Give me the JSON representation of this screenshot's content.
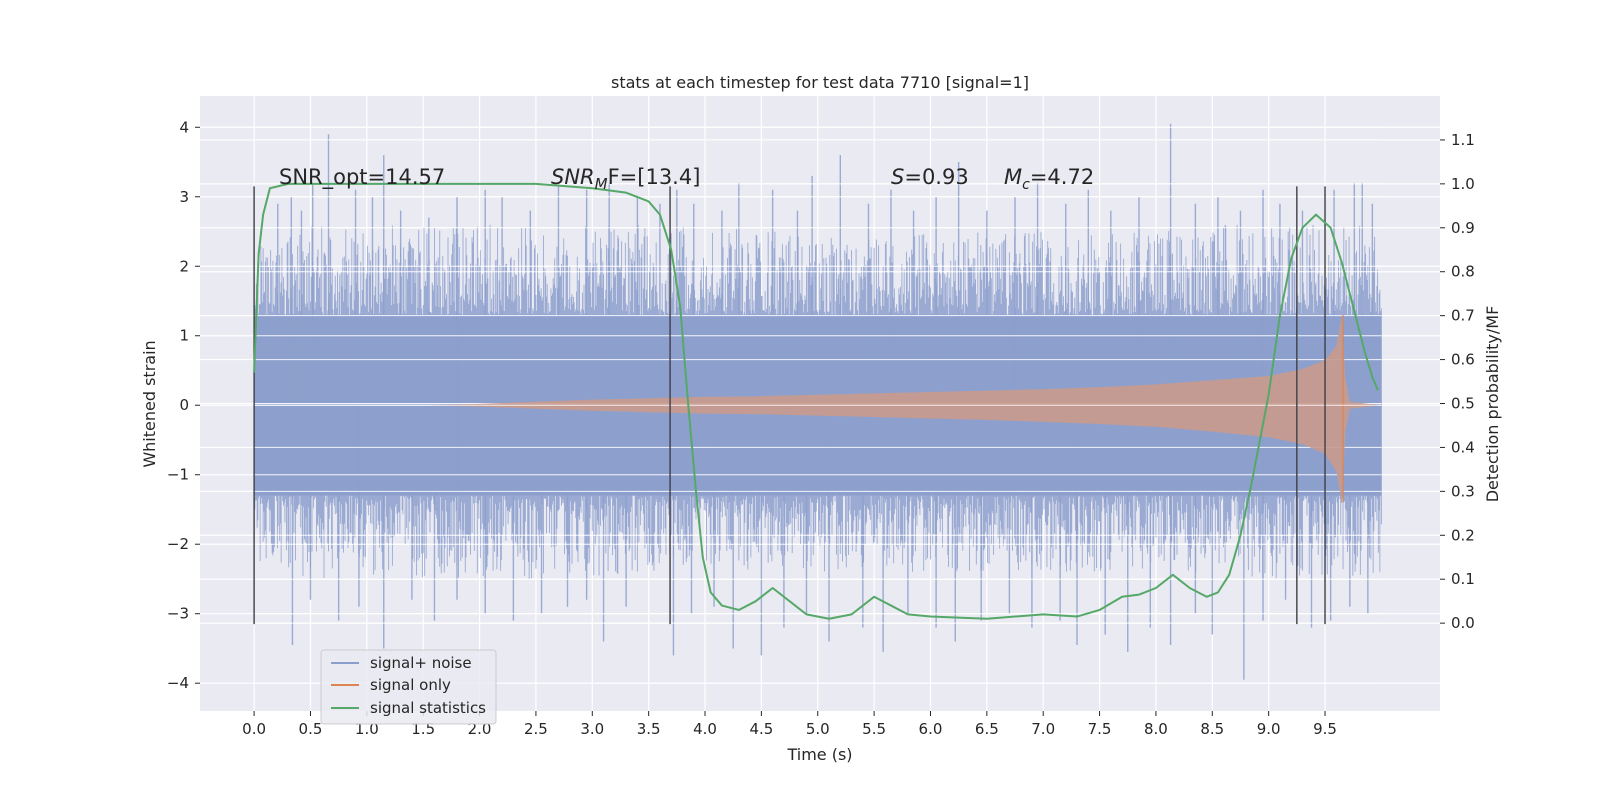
{
  "chart_data": {
    "type": "line",
    "title": "stats at each timestep for test data 7710 [signal=1]",
    "xlabel": "Time (s)",
    "ylabel_left": "Whitened strain",
    "ylabel_right": "Detection probability/MF",
    "xlim": [
      -0.48,
      10.52
    ],
    "ylim_left": [
      -4.4,
      4.45
    ],
    "ylim_right": [
      -0.2,
      1.2
    ],
    "x_ticks": [
      0.0,
      0.5,
      1.0,
      1.5,
      2.0,
      2.5,
      3.0,
      3.5,
      4.0,
      4.5,
      5.0,
      5.5,
      6.0,
      6.5,
      7.0,
      7.5,
      8.0,
      8.5,
      9.0,
      9.5
    ],
    "x_tick_labels": [
      "0.0",
      "0.5",
      "1.0",
      "1.5",
      "2.0",
      "2.5",
      "3.0",
      "3.5",
      "4.0",
      "4.5",
      "5.0",
      "5.5",
      "6.0",
      "6.5",
      "7.0",
      "7.5",
      "8.0",
      "8.5",
      "9.0",
      "9.5"
    ],
    "y_left_ticks": [
      -4,
      -3,
      -2,
      -1,
      0,
      1,
      2,
      3,
      4
    ],
    "y_left_tick_labels": [
      "−4",
      "−3",
      "−2",
      "−1",
      "0",
      "1",
      "2",
      "3",
      "4"
    ],
    "y_right_ticks": [
      0.0,
      0.1,
      0.2,
      0.3,
      0.4,
      0.5,
      0.6,
      0.7,
      0.8,
      0.9,
      1.0,
      1.1
    ],
    "y_right_tick_labels": [
      "0.0",
      "0.1",
      "0.2",
      "0.3",
      "0.4",
      "0.5",
      "0.6",
      "0.7",
      "0.8",
      "0.9",
      "1.0",
      "1.1"
    ],
    "grid": true,
    "legend": {
      "placement": "lower-left",
      "entries": [
        {
          "label": "signal+ noise",
          "color": "#8c9fcc"
        },
        {
          "label": "signal only",
          "color": "#dd8452"
        },
        {
          "label": "signal statistics",
          "color": "#55a868"
        }
      ]
    },
    "annotations": {
      "snr_opt": "SNR_opt=14.57",
      "snr_mf_sym": "SNR",
      "snr_mf_sub": "M",
      "snr_mf_rest": "F=[13.4]",
      "s_sym": "S",
      "s_rest": "=0.93",
      "mc_sym": "M",
      "mc_sub": "c",
      "mc_rest": "=4.72"
    },
    "vertical_markers": {
      "x": [
        0.0,
        3.69,
        9.25,
        9.5
      ],
      "ymin": -3.15,
      "ymax": 3.15
    },
    "series": [
      {
        "name": "signal+ noise",
        "kind": "noise",
        "x_range": [
          0.0,
          10.0
        ],
        "upper": [
          [
            0.0,
            1.5
          ],
          [
            0.05,
            2.3
          ],
          [
            0.2,
            2.4
          ],
          [
            0.5,
            2.6
          ],
          [
            1.0,
            2.6
          ],
          [
            1.5,
            2.6
          ],
          [
            2.0,
            2.6
          ],
          [
            2.5,
            2.6
          ],
          [
            3.0,
            2.6
          ],
          [
            3.5,
            2.6
          ],
          [
            4.0,
            2.6
          ],
          [
            4.5,
            2.5
          ],
          [
            5.0,
            2.5
          ],
          [
            5.5,
            2.5
          ],
          [
            6.0,
            2.5
          ],
          [
            6.5,
            2.5
          ],
          [
            7.0,
            2.5
          ],
          [
            7.5,
            2.5
          ],
          [
            8.0,
            2.5
          ],
          [
            8.5,
            2.6
          ],
          [
            9.0,
            2.6
          ],
          [
            9.5,
            2.6
          ],
          [
            9.95,
            2.6
          ],
          [
            10.0,
            2.6
          ]
        ],
        "lower": [
          [
            0.0,
            -1.5
          ],
          [
            0.05,
            -2.3
          ],
          [
            0.2,
            -2.4
          ],
          [
            0.5,
            -2.5
          ],
          [
            1.0,
            -2.5
          ],
          [
            1.5,
            -2.5
          ],
          [
            2.0,
            -2.5
          ],
          [
            2.5,
            -2.5
          ],
          [
            3.0,
            -2.5
          ],
          [
            3.5,
            -2.4
          ],
          [
            4.0,
            -2.4
          ],
          [
            4.5,
            -2.4
          ],
          [
            5.0,
            -2.4
          ],
          [
            5.5,
            -2.4
          ],
          [
            6.0,
            -2.4
          ],
          [
            6.5,
            -2.4
          ],
          [
            7.0,
            -2.4
          ],
          [
            7.5,
            -2.4
          ],
          [
            8.0,
            -2.4
          ],
          [
            8.5,
            -2.4
          ],
          [
            9.0,
            -2.5
          ],
          [
            9.5,
            -2.5
          ],
          [
            9.95,
            -2.5
          ],
          [
            10.0,
            -2.5
          ]
        ],
        "core_amplitude": 1.3,
        "spikes_up": [
          [
            0.21,
            2.9
          ],
          [
            0.33,
            3.0
          ],
          [
            0.42,
            2.8
          ],
          [
            0.52,
            3.2
          ],
          [
            0.66,
            3.9
          ],
          [
            0.9,
            3.1
          ],
          [
            1.05,
            3.0
          ],
          [
            1.15,
            3.6
          ],
          [
            1.3,
            2.8
          ],
          [
            1.55,
            2.7
          ],
          [
            1.8,
            3.0
          ],
          [
            2.05,
            3.1
          ],
          [
            2.2,
            3.0
          ],
          [
            2.45,
            2.8
          ],
          [
            2.7,
            3.2
          ],
          [
            2.95,
            3.1
          ],
          [
            3.15,
            3.2
          ],
          [
            3.4,
            3.0
          ],
          [
            3.6,
            2.9
          ],
          [
            3.75,
            3.1
          ],
          [
            3.9,
            2.9
          ],
          [
            4.15,
            2.8
          ],
          [
            4.3,
            3.2
          ],
          [
            4.6,
            3.1
          ],
          [
            4.82,
            2.8
          ],
          [
            4.95,
            3.3
          ],
          [
            5.2,
            3.6
          ],
          [
            5.45,
            2.9
          ],
          [
            5.65,
            3.1
          ],
          [
            5.85,
            2.8
          ],
          [
            6.05,
            3.0
          ],
          [
            6.25,
            3.5
          ],
          [
            6.5,
            2.8
          ],
          [
            6.75,
            3.0
          ],
          [
            6.95,
            3.2
          ],
          [
            7.2,
            2.9
          ],
          [
            7.4,
            3.1
          ],
          [
            7.6,
            2.8
          ],
          [
            7.85,
            3.0
          ],
          [
            8.13,
            4.05
          ],
          [
            8.35,
            2.9
          ],
          [
            8.55,
            3.0
          ],
          [
            8.75,
            2.8
          ],
          [
            8.95,
            3.1
          ],
          [
            9.1,
            2.9
          ],
          [
            9.3,
            2.8
          ],
          [
            9.58,
            3.1
          ],
          [
            9.76,
            3.2
          ],
          [
            9.83,
            3.2
          ],
          [
            9.92,
            2.9
          ]
        ],
        "spikes_down": [
          [
            0.34,
            -3.45
          ],
          [
            0.5,
            -2.8
          ],
          [
            0.75,
            -3.1
          ],
          [
            0.93,
            -2.9
          ],
          [
            1.15,
            -3.5
          ],
          [
            1.4,
            -2.8
          ],
          [
            1.6,
            -3.1
          ],
          [
            1.8,
            -2.8
          ],
          [
            2.05,
            -3.0
          ],
          [
            2.3,
            -3.1
          ],
          [
            2.55,
            -3.0
          ],
          [
            2.78,
            -2.9
          ],
          [
            2.95,
            -2.8
          ],
          [
            3.1,
            -3.4
          ],
          [
            3.3,
            -2.9
          ],
          [
            3.72,
            -3.6
          ],
          [
            3.88,
            -3.0
          ],
          [
            4.08,
            -2.9
          ],
          [
            4.25,
            -3.5
          ],
          [
            4.5,
            -3.6
          ],
          [
            4.7,
            -3.2
          ],
          [
            4.9,
            -3.0
          ],
          [
            5.1,
            -3.4
          ],
          [
            5.4,
            -3.2
          ],
          [
            5.58,
            -3.55
          ],
          [
            5.8,
            -3.0
          ],
          [
            6.05,
            -3.2
          ],
          [
            6.22,
            -3.4
          ],
          [
            6.45,
            -3.1
          ],
          [
            6.7,
            -3.0
          ],
          [
            6.9,
            -3.2
          ],
          [
            7.15,
            -3.1
          ],
          [
            7.3,
            -3.45
          ],
          [
            7.55,
            -3.3
          ],
          [
            7.75,
            -3.55
          ],
          [
            7.95,
            -3.2
          ],
          [
            8.13,
            -3.45
          ],
          [
            8.35,
            -3.0
          ],
          [
            8.5,
            -3.3
          ],
          [
            8.78,
            -3.95
          ],
          [
            8.95,
            -3.1
          ],
          [
            9.15,
            -2.8
          ],
          [
            9.38,
            -3.2
          ],
          [
            9.55,
            -3.1
          ],
          [
            9.72,
            -2.9
          ],
          [
            9.88,
            -3.0
          ]
        ]
      },
      {
        "name": "signal only",
        "kind": "envelope",
        "upper": [
          [
            0.0,
            0.0
          ],
          [
            1.5,
            0.0
          ],
          [
            2.0,
            0.02
          ],
          [
            2.5,
            0.05
          ],
          [
            3.0,
            0.08
          ],
          [
            3.5,
            0.1
          ],
          [
            4.0,
            0.12
          ],
          [
            4.5,
            0.13
          ],
          [
            5.0,
            0.15
          ],
          [
            5.5,
            0.17
          ],
          [
            6.0,
            0.19
          ],
          [
            6.5,
            0.21
          ],
          [
            7.0,
            0.23
          ],
          [
            7.5,
            0.26
          ],
          [
            8.0,
            0.3
          ],
          [
            8.5,
            0.36
          ],
          [
            9.0,
            0.42
          ],
          [
            9.3,
            0.52
          ],
          [
            9.5,
            0.65
          ],
          [
            9.6,
            0.85
          ],
          [
            9.65,
            1.3
          ],
          [
            9.68,
            0.4
          ],
          [
            9.72,
            0.05
          ],
          [
            10.0,
            0.0
          ]
        ],
        "lower": [
          [
            0.0,
            0.0
          ],
          [
            1.5,
            0.0
          ],
          [
            2.0,
            -0.02
          ],
          [
            2.5,
            -0.05
          ],
          [
            3.0,
            -0.08
          ],
          [
            3.5,
            -0.1
          ],
          [
            4.0,
            -0.12
          ],
          [
            4.5,
            -0.13
          ],
          [
            5.0,
            -0.15
          ],
          [
            5.5,
            -0.17
          ],
          [
            6.0,
            -0.19
          ],
          [
            6.5,
            -0.21
          ],
          [
            7.0,
            -0.24
          ],
          [
            7.5,
            -0.27
          ],
          [
            8.0,
            -0.31
          ],
          [
            8.5,
            -0.38
          ],
          [
            9.0,
            -0.46
          ],
          [
            9.3,
            -0.56
          ],
          [
            9.5,
            -0.7
          ],
          [
            9.6,
            -0.95
          ],
          [
            9.65,
            -1.4
          ],
          [
            9.68,
            -0.4
          ],
          [
            9.72,
            -0.05
          ],
          [
            10.0,
            0.0
          ]
        ]
      },
      {
        "name": "signal statistics",
        "kind": "line",
        "axis": "right",
        "points": [
          [
            0.0,
            0.57
          ],
          [
            0.04,
            0.84
          ],
          [
            0.08,
            0.93
          ],
          [
            0.14,
            0.99
          ],
          [
            0.3,
            1.0
          ],
          [
            1.0,
            1.0
          ],
          [
            2.0,
            1.0
          ],
          [
            2.5,
            1.0
          ],
          [
            3.0,
            0.99
          ],
          [
            3.3,
            0.98
          ],
          [
            3.5,
            0.96
          ],
          [
            3.6,
            0.93
          ],
          [
            3.7,
            0.85
          ],
          [
            3.78,
            0.72
          ],
          [
            3.85,
            0.5
          ],
          [
            3.92,
            0.3
          ],
          [
            3.98,
            0.15
          ],
          [
            4.05,
            0.07
          ],
          [
            4.15,
            0.04
          ],
          [
            4.3,
            0.03
          ],
          [
            4.45,
            0.05
          ],
          [
            4.6,
            0.08
          ],
          [
            4.75,
            0.05
          ],
          [
            4.9,
            0.02
          ],
          [
            5.1,
            0.01
          ],
          [
            5.3,
            0.02
          ],
          [
            5.5,
            0.06
          ],
          [
            5.65,
            0.04
          ],
          [
            5.8,
            0.02
          ],
          [
            6.0,
            0.015
          ],
          [
            6.5,
            0.01
          ],
          [
            7.0,
            0.02
          ],
          [
            7.3,
            0.015
          ],
          [
            7.5,
            0.03
          ],
          [
            7.7,
            0.06
          ],
          [
            7.85,
            0.065
          ],
          [
            8.0,
            0.08
          ],
          [
            8.15,
            0.11
          ],
          [
            8.3,
            0.08
          ],
          [
            8.45,
            0.06
          ],
          [
            8.55,
            0.07
          ],
          [
            8.65,
            0.11
          ],
          [
            8.75,
            0.2
          ],
          [
            8.85,
            0.32
          ],
          [
            9.0,
            0.52
          ],
          [
            9.1,
            0.7
          ],
          [
            9.2,
            0.83
          ],
          [
            9.3,
            0.9
          ],
          [
            9.42,
            0.93
          ],
          [
            9.55,
            0.9
          ],
          [
            9.65,
            0.82
          ],
          [
            9.75,
            0.72
          ],
          [
            9.85,
            0.62
          ],
          [
            9.92,
            0.56
          ],
          [
            9.97,
            0.53
          ]
        ]
      }
    ]
  }
}
